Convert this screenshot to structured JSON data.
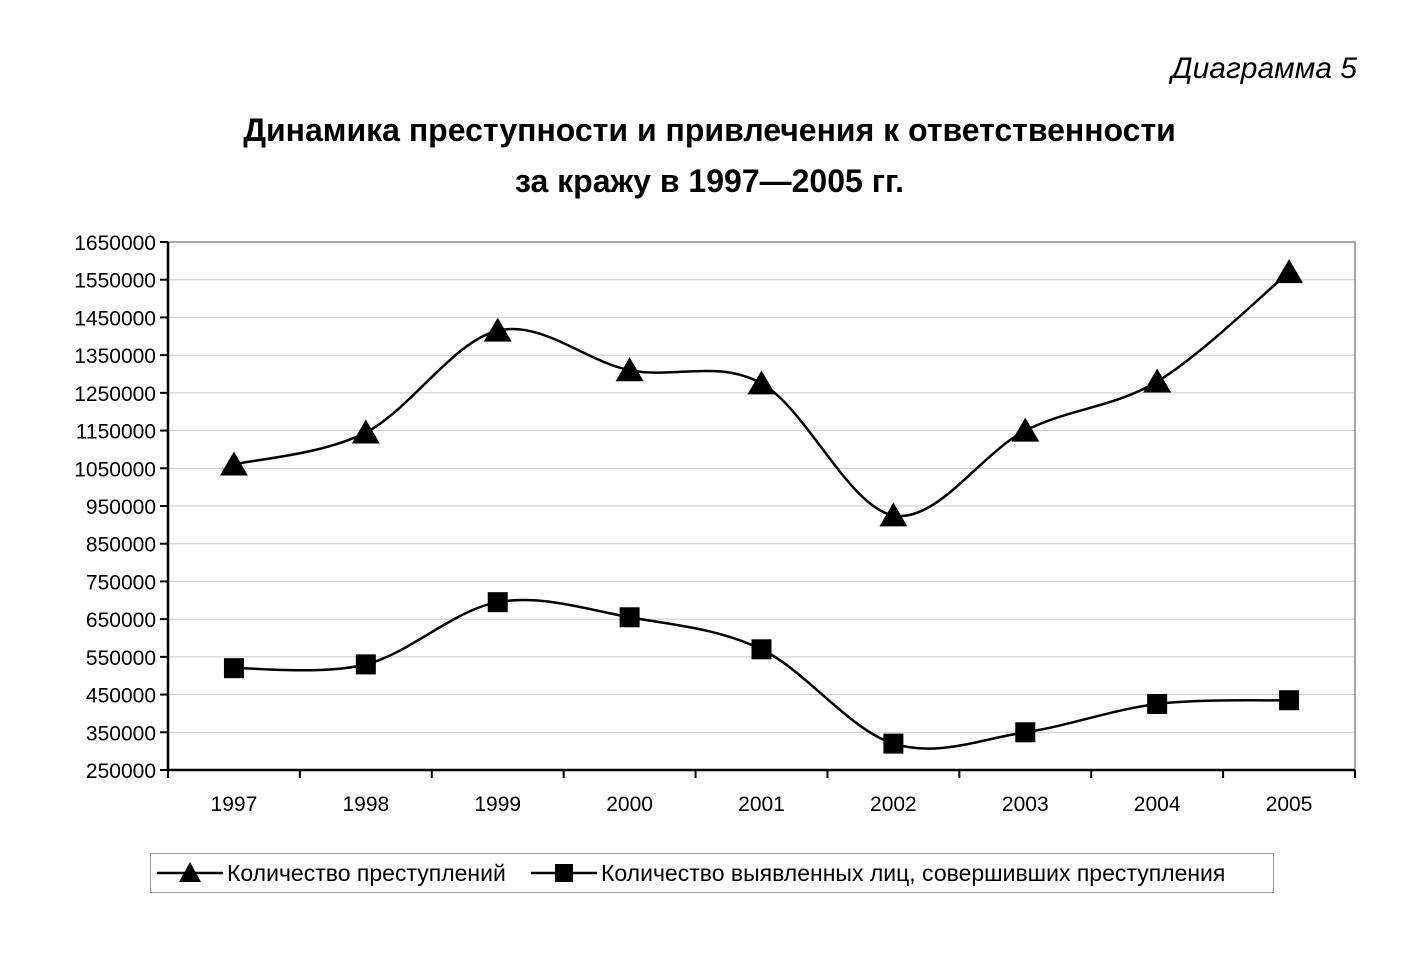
{
  "header": {
    "diagram_number": "Диаграмма 5",
    "title_line1": "Динамика преступности и привлечения к ответственности",
    "title_line2": "за кражу в 1997—2005 гг."
  },
  "chart_data": {
    "type": "line",
    "title": "Динамика преступности и привлечения к ответственности за кражу в 1997—2005 гг.",
    "xlabel": "",
    "ylabel": "",
    "categories": [
      "1997",
      "1998",
      "1999",
      "2000",
      "2001",
      "2002",
      "2003",
      "2004",
      "2005"
    ],
    "ylim": [
      250000,
      1650000
    ],
    "y_ticks": [
      250000,
      350000,
      450000,
      550000,
      650000,
      750000,
      850000,
      950000,
      1050000,
      1150000,
      1250000,
      1350000,
      1450000,
      1550000,
      1650000
    ],
    "y_tick_labels": [
      "250000",
      "350000",
      "450000",
      "550000",
      "650000",
      "750000",
      "850000",
      "950000",
      "1050000",
      "1150000",
      "1250000",
      "1350000",
      "1450000",
      "1550000",
      "1650000"
    ],
    "grid": true,
    "smoothed": true,
    "legend_position": "bottom",
    "series": [
      {
        "name": "Количество преступлений",
        "marker": "triangle",
        "values": [
          1060000,
          1145000,
          1415000,
          1310000,
          1275000,
          925000,
          1150000,
          1280000,
          1570000
        ]
      },
      {
        "name": "Количество выявленных лиц, совершивших преступления",
        "marker": "square",
        "values": [
          520000,
          530000,
          695000,
          655000,
          570000,
          320000,
          350000,
          425000,
          435000
        ]
      }
    ]
  },
  "colors": {
    "line": "#000000",
    "grid": "#c8c8c8",
    "axis": "#000000",
    "frame": "#8c8c8c"
  }
}
